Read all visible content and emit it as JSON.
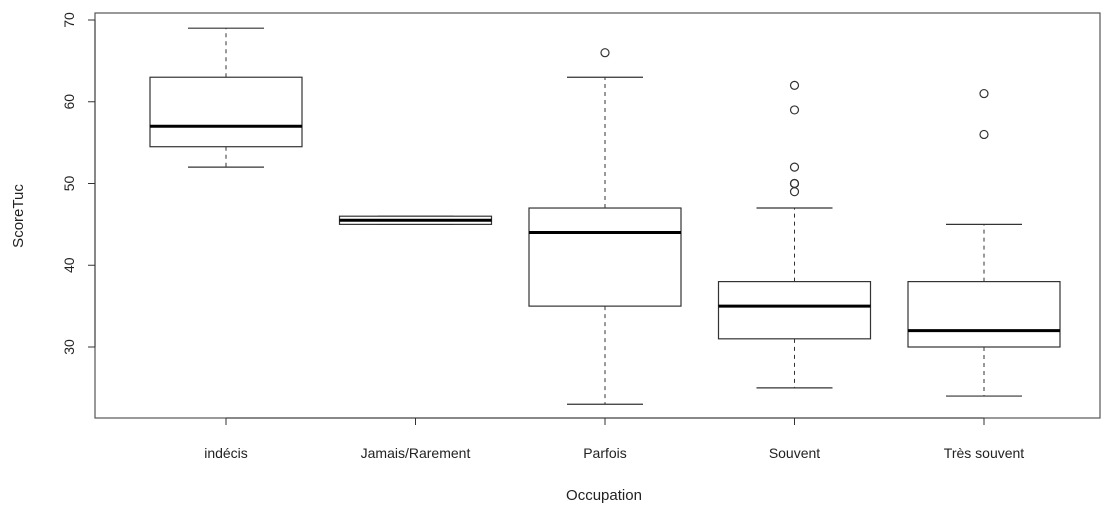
{
  "chart_data": {
    "type": "boxplot",
    "title": "",
    "xlabel": "Occupation",
    "ylabel": "ScoreTuc",
    "ylim": [
      21,
      70
    ],
    "yticks": [
      30,
      40,
      50,
      60,
      70
    ],
    "grid": false,
    "categories": [
      "indécis",
      "Jamais/Rarement",
      "Parfois",
      "Souvent",
      "Très souvent"
    ],
    "boxes": [
      {
        "category": "indécis",
        "whisker_low": 52,
        "q1": 54.5,
        "median": 57,
        "q3": 63,
        "whisker_high": 69,
        "outliers": []
      },
      {
        "category": "Jamais/Rarement",
        "whisker_low": 45,
        "q1": 45,
        "median": 45.5,
        "q3": 46,
        "whisker_high": 46,
        "outliers": []
      },
      {
        "category": "Parfois",
        "whisker_low": 23,
        "q1": 35,
        "median": 44,
        "q3": 47,
        "whisker_high": 63,
        "outliers": [
          66
        ]
      },
      {
        "category": "Souvent",
        "whisker_low": 25,
        "q1": 31,
        "median": 35,
        "q3": 38,
        "whisker_high": 47,
        "outliers": [
          49,
          50,
          50,
          52,
          59,
          62
        ]
      },
      {
        "category": "Très souvent",
        "whisker_low": 24,
        "q1": 30,
        "median": 32,
        "q3": 38,
        "whisker_high": 45,
        "outliers": [
          56,
          61
        ]
      }
    ]
  }
}
